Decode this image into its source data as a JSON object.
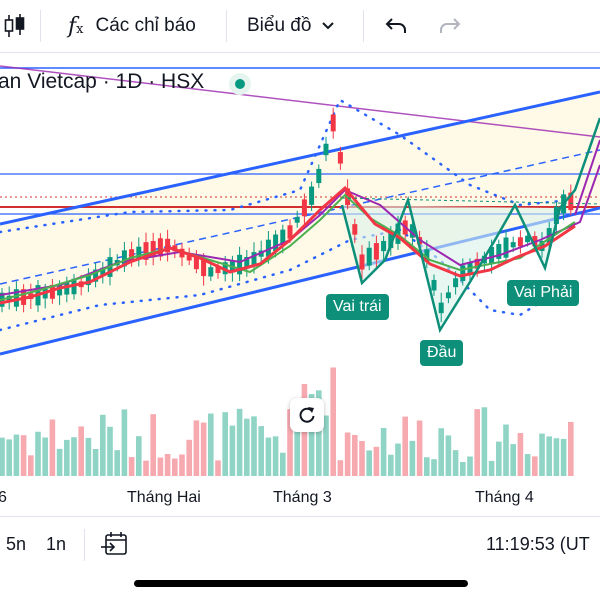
{
  "toolbar": {
    "indicators_label": "Các chỉ báo",
    "chart_type_label": "Biểu đồ"
  },
  "symbol": {
    "title": "an Vietcap · 1D · HSX"
  },
  "patterns": {
    "left_shoulder": "Vai trái",
    "head": "Đầu",
    "right_shoulder": "Vai Phải"
  },
  "x_axis": {
    "labels": [
      "6",
      "Tháng Hai",
      "Tháng 3",
      "Tháng 4"
    ]
  },
  "bottom_bar": {
    "intervals": [
      "5n",
      "1n"
    ],
    "clock": "11:19:53 (UT"
  },
  "colors": {
    "up": "#089981",
    "down": "#f23645",
    "trend_channel": "#2962ff",
    "ma_red": "#f23645",
    "ma_green": "#4caf50",
    "ma_purple": "#9c27b0",
    "pattern_line": "#0d8f7a",
    "volume_up": "#8fd4c5",
    "volume_down": "#f7a9b0"
  },
  "icons": [
    "candles-icon",
    "function-icon",
    "chevron-down-icon",
    "undo-icon",
    "redo-icon",
    "reset-icon",
    "date-range-icon"
  ]
}
